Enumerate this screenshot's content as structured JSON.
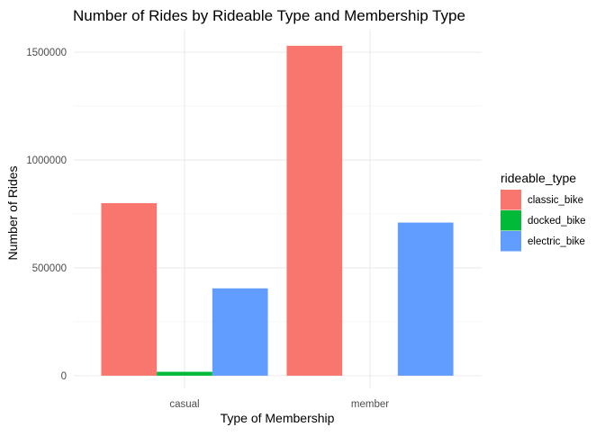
{
  "chart_data": {
    "type": "bar",
    "title": "Number of Rides by Rideable Type and Membership Type",
    "xlabel": "Type of Membership",
    "ylabel": "Number of Rides",
    "categories": [
      "casual",
      "member"
    ],
    "series": [
      {
        "name": "classic_bike",
        "color": "#F8766D",
        "values": [
          800000,
          1530000
        ]
      },
      {
        "name": "docked_bike",
        "color": "#00BA38",
        "values": [
          18000,
          0
        ]
      },
      {
        "name": "electric_bike",
        "color": "#619CFF",
        "values": [
          405000,
          710000
        ]
      }
    ],
    "ylim": [
      0,
      1600000
    ],
    "yticks": [
      0,
      500000,
      1000000,
      1500000
    ],
    "ytick_labels": [
      "0",
      "500000",
      "1000000",
      "1500000"
    ],
    "grid": true,
    "legend": {
      "title": "rideable_type",
      "placement": "right"
    }
  }
}
